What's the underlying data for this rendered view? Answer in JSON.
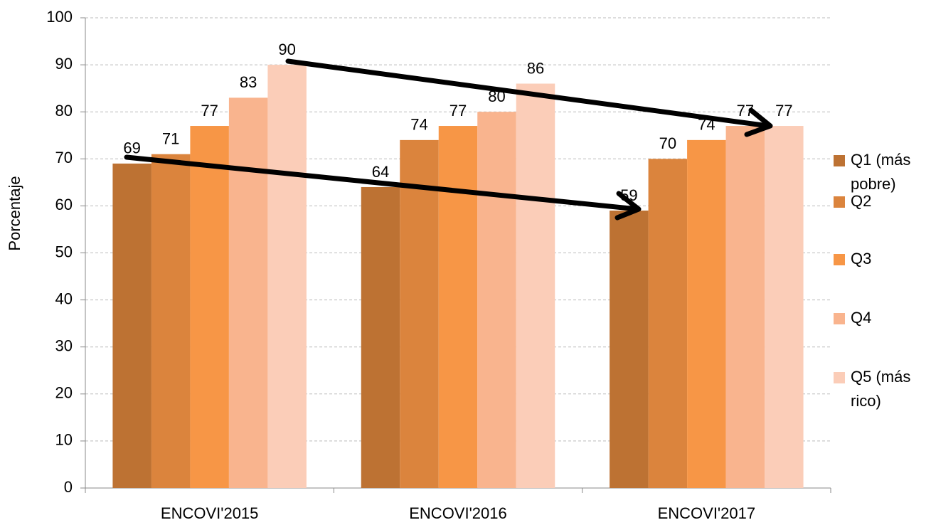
{
  "chart_data": {
    "type": "bar",
    "y_label": "Porcentaje",
    "categories": [
      "ENCOVI'2015",
      "ENCOVI'2016",
      "ENCOVI'2017"
    ],
    "series": [
      {
        "name": "Q1 (más pobre)",
        "color": "#bd7233",
        "values": [
          69,
          64,
          59
        ]
      },
      {
        "name": "Q2",
        "color": "#db843d",
        "values": [
          71,
          74,
          70
        ]
      },
      {
        "name": "Q3",
        "color": "#f79646",
        "values": [
          77,
          77,
          74
        ]
      },
      {
        "name": "Q4",
        "color": "#f9b48e",
        "values": [
          83,
          80,
          77
        ]
      },
      {
        "name": "Q5 (más rico)",
        "color": "#fbcdb8",
        "values": [
          90,
          86,
          77
        ]
      }
    ],
    "ylim": [
      0,
      100
    ],
    "yticks": [
      0,
      10,
      20,
      30,
      40,
      50,
      60,
      70,
      80,
      90,
      100
    ],
    "grid": true,
    "legend": "right"
  }
}
